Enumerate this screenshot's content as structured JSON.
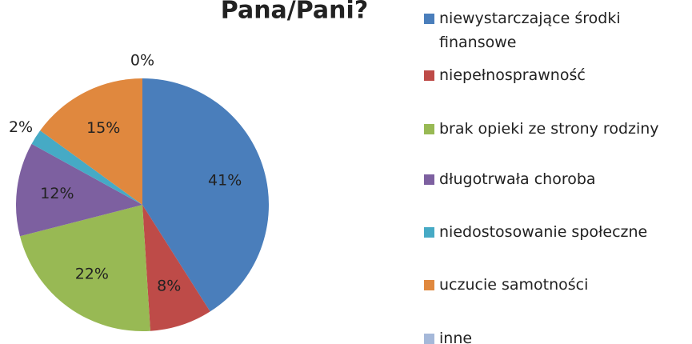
{
  "chart_data": {
    "type": "pie",
    "title": "Pana/Pani?",
    "categories": [
      "niewystarczające środki finansowe",
      "niepełnosprawność",
      "brak opieki ze strony rodziny",
      "długotrwała choroba",
      "niedostosowanie społeczne",
      "uczucie samotności",
      "inne"
    ],
    "values": [
      41,
      8,
      22,
      12,
      2,
      15,
      0
    ],
    "value_labels": [
      "41%",
      "8%",
      "22%",
      "12%",
      "2%",
      "15%",
      "0%"
    ],
    "colors": [
      "#4a7ebb",
      "#be4b48",
      "#98b954",
      "#7d60a0",
      "#46aac5",
      "#e0883e",
      "#a5b8d9"
    ],
    "legend": "right"
  }
}
